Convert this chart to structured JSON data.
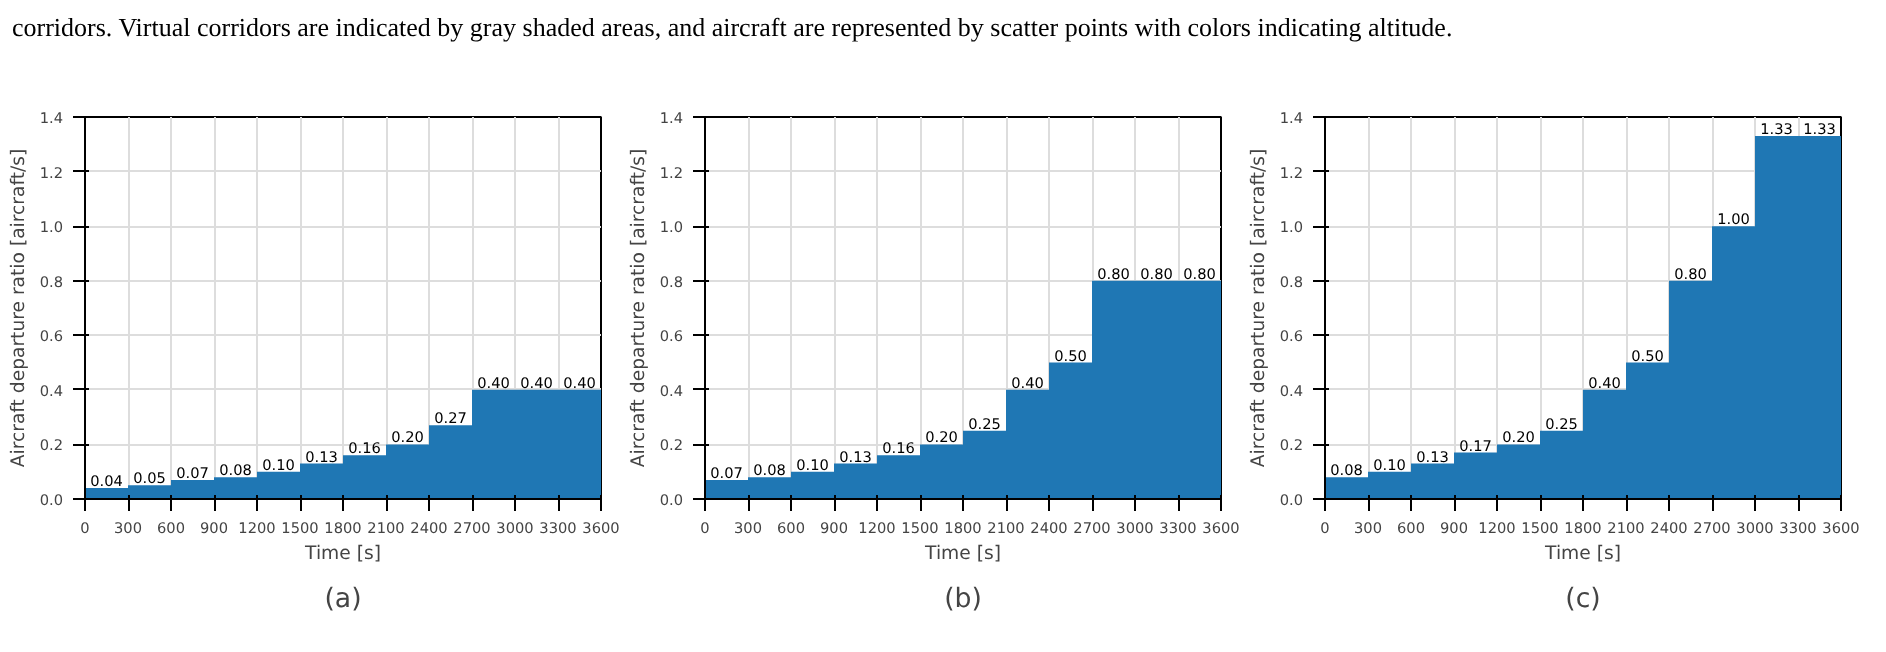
{
  "chart_data": [
    {
      "type": "histogram",
      "xlabel": "Time [s]",
      "ylabel": "Aircraft departure ratio [aircraft/s]",
      "bins": [
        0,
        300,
        600,
        900,
        1200,
        1500,
        1800,
        2100,
        2400,
        2700,
        3000,
        3300,
        3600
      ],
      "values": [
        0.04,
        0.05,
        0.07,
        0.08,
        0.1,
        0.13,
        0.16,
        0.2,
        0.27,
        0.4,
        0.4,
        0.4
      ],
      "value_labels": [
        "0.04",
        "0.05",
        "0.07",
        "0.08",
        "0.10",
        "0.13",
        "0.16",
        "0.20",
        "0.27",
        "0.40",
        "0.40",
        "0.40"
      ],
      "color": "#1f77b4",
      "xlim": [
        0,
        3600
      ],
      "ylim": [
        0,
        1.4
      ],
      "xticks": [
        0,
        300,
        600,
        900,
        1200,
        1500,
        1800,
        2100,
        2400,
        2700,
        3000,
        3300,
        3600
      ],
      "yticks": [
        {
          "value": 0,
          "label": "0.0"
        },
        {
          "value": 0.2,
          "label": "0.2"
        },
        {
          "value": 0.4,
          "label": "0.4"
        },
        {
          "value": 0.6,
          "label": "0.6"
        },
        {
          "value": 0.8,
          "label": "0.8"
        },
        {
          "value": 1.0,
          "label": "1.0"
        },
        {
          "value": 1.2,
          "label": "1.2"
        },
        {
          "value": 1.4,
          "label": "1.4"
        }
      ],
      "grid": true,
      "annotations": [
        "corridors. Virtual corridors are indicated by gray shaded areas, and aircraft are represented by scatter points with colors indicating altitude.",
        "(a)"
      ]
    },
    {
      "type": "histogram",
      "xlabel": "Time [s]",
      "ylabel": "Aircraft departure ratio [aircraft/s]",
      "bins": [
        0,
        300,
        600,
        900,
        1200,
        1500,
        1800,
        2100,
        2400,
        2700,
        3000,
        3300,
        3600
      ],
      "values": [
        0.07,
        0.08,
        0.1,
        0.13,
        0.16,
        0.2,
        0.25,
        0.4,
        0.5,
        0.8,
        0.8,
        0.8
      ],
      "value_labels": [
        "0.07",
        "0.08",
        "0.10",
        "0.13",
        "0.16",
        "0.20",
        "0.25",
        "0.40",
        "0.50",
        "0.80",
        "0.80",
        "0.80"
      ],
      "color": "#1f77b4",
      "xlim": [
        0,
        3600
      ],
      "ylim": [
        0,
        1.4
      ],
      "xticks": [
        0,
        300,
        600,
        900,
        1200,
        1500,
        1800,
        2100,
        2400,
        2700,
        3000,
        3300,
        3600
      ],
      "yticks": [
        {
          "value": 0,
          "label": "0.0"
        },
        {
          "value": 0.2,
          "label": "0.2"
        },
        {
          "value": 0.4,
          "label": "0.4"
        },
        {
          "value": 0.6,
          "label": "0.6"
        },
        {
          "value": 0.8,
          "label": "0.8"
        },
        {
          "value": 1.0,
          "label": "1.0"
        },
        {
          "value": 1.2,
          "label": "1.2"
        },
        {
          "value": 1.4,
          "label": "1.4"
        }
      ],
      "grid": true,
      "annotations": [
        "(b)"
      ]
    },
    {
      "type": "histogram",
      "xlabel": "Time [s]",
      "ylabel": "Aircraft departure ratio [aircraft/s]",
      "bins": [
        0,
        300,
        600,
        900,
        1200,
        1500,
        1800,
        2100,
        2400,
        2700,
        3000,
        3300,
        3600
      ],
      "values": [
        0.08,
        0.1,
        0.13,
        0.17,
        0.2,
        0.25,
        0.4,
        0.5,
        0.8,
        1.0,
        1.33,
        1.33
      ],
      "value_labels": [
        "0.08",
        "0.10",
        "0.13",
        "0.17",
        "0.20",
        "0.25",
        "0.40",
        "0.50",
        "0.80",
        "1.00",
        "1.33",
        "1.33"
      ],
      "color": "#1f77b4",
      "xlim": [
        0,
        3600
      ],
      "ylim": [
        0,
        1.4
      ],
      "xticks": [
        0,
        300,
        600,
        900,
        1200,
        1500,
        1800,
        2100,
        2400,
        2700,
        3000,
        3300,
        3600
      ],
      "yticks": [
        {
          "value": 0,
          "label": "0.0"
        },
        {
          "value": 0.2,
          "label": "0.2"
        },
        {
          "value": 0.4,
          "label": "0.4"
        },
        {
          "value": 0.6,
          "label": "0.6"
        },
        {
          "value": 0.8,
          "label": "0.8"
        },
        {
          "value": 1.0,
          "label": "1.0"
        },
        {
          "value": 1.2,
          "label": "1.2"
        },
        {
          "value": 1.4,
          "label": "1.4"
        }
      ],
      "grid": true,
      "annotations": [
        "(c)"
      ]
    }
  ]
}
